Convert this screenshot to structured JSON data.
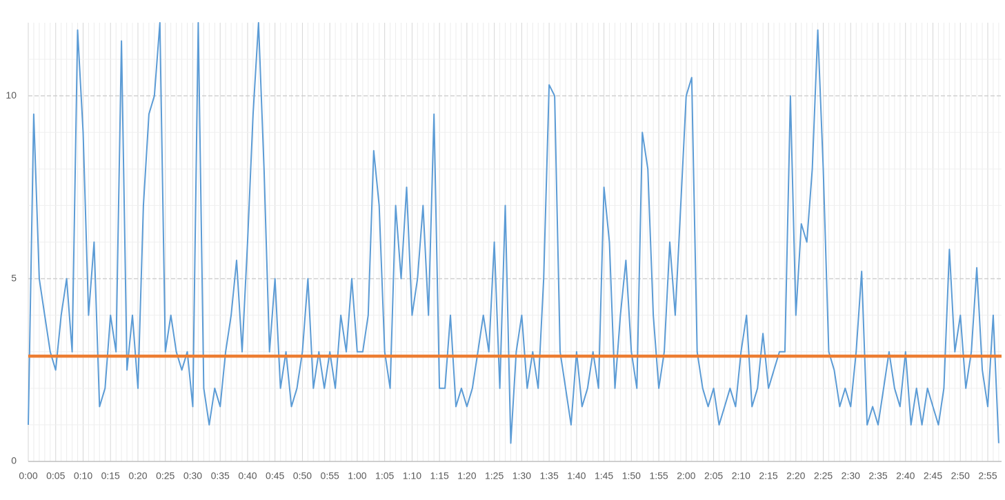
{
  "chart_data": {
    "type": "line",
    "categories": [
      "0:00",
      null,
      null,
      null,
      null,
      "0:05",
      null,
      null,
      null,
      null,
      "0:10",
      null,
      null,
      null,
      null,
      "0:15",
      null,
      null,
      null,
      null,
      "0:20",
      null,
      null,
      null,
      null,
      "0:25",
      null,
      null,
      null,
      null,
      "0:30",
      null,
      null,
      null,
      null,
      "0:35",
      null,
      null,
      null,
      null,
      "0:40",
      null,
      null,
      null,
      null,
      "0:45",
      null,
      null,
      null,
      null,
      "0:50",
      null,
      null,
      null,
      null,
      "0:55",
      null,
      null,
      null,
      null,
      "1:00",
      null,
      null,
      null,
      null,
      "1:05",
      null,
      null,
      null,
      null,
      "1:10",
      null,
      null,
      null,
      null,
      "1:15",
      null,
      null,
      null,
      null,
      "1:20",
      null,
      null,
      null,
      null,
      "1:25",
      null,
      null,
      null,
      null,
      "1:30",
      null,
      null,
      null,
      null,
      "1:35",
      null,
      null,
      null,
      null,
      "1:40",
      null,
      null,
      null,
      null,
      "1:45",
      null,
      null,
      null,
      null,
      "1:50",
      null,
      null,
      null,
      null,
      "1:55",
      null,
      null,
      null,
      null,
      "2:00",
      null,
      null,
      null,
      null,
      "2:05",
      null,
      null,
      null,
      null,
      "2:10",
      null,
      null,
      null,
      null,
      "2:15",
      null,
      null,
      null,
      null,
      "2:20",
      null,
      null,
      null,
      null,
      "2:25",
      null,
      null,
      null,
      null,
      "2:30",
      null,
      null,
      null,
      null,
      "2:35",
      null,
      null,
      null,
      null,
      "2:40",
      null,
      null,
      null,
      null,
      "2:45",
      null,
      null,
      null,
      null,
      "2:50",
      null,
      null,
      null,
      null,
      "2:55",
      null,
      null
    ],
    "series": [
      {
        "color": "#5b9bd5",
        "values": [
          1,
          9.5,
          5,
          4,
          3,
          2.5,
          4,
          5,
          3,
          11.8,
          9,
          4,
          6,
          1.5,
          2,
          4,
          3,
          11.5,
          2.5,
          4,
          2,
          7,
          9.5,
          10,
          12,
          3,
          4,
          3,
          2.5,
          3,
          1.5,
          12,
          2,
          1,
          2,
          1.5,
          3,
          4,
          5.5,
          3,
          6,
          9.5,
          12,
          8,
          3,
          5,
          2,
          3,
          1.5,
          2,
          3,
          5,
          2,
          3,
          2,
          3,
          2,
          4,
          3,
          5,
          3,
          3,
          4,
          8.5,
          7,
          3,
          2,
          7,
          5,
          7.5,
          4,
          5,
          7,
          4,
          9.5,
          2,
          2,
          4,
          1.5,
          2,
          1.5,
          2,
          3,
          4,
          3,
          6,
          2,
          7,
          0.5,
          3,
          4,
          2,
          3,
          2,
          5,
          10.3,
          10,
          3,
          2,
          1,
          3,
          1.5,
          2,
          3,
          2,
          7.5,
          6,
          2,
          4,
          5.5,
          3,
          2,
          9,
          8,
          4,
          2,
          3,
          6,
          4,
          7,
          10,
          10.5,
          3,
          2,
          1.5,
          2,
          1,
          1.5,
          2,
          1.5,
          3,
          4,
          1.5,
          2,
          3.5,
          2,
          2.5,
          3,
          3,
          10,
          4,
          6.5,
          6,
          8,
          11.8,
          8,
          3,
          2.5,
          1.5,
          2,
          1.5,
          3,
          5.2,
          1,
          1.5,
          1,
          2,
          3,
          2,
          1.5,
          3,
          1,
          2,
          1,
          2,
          1.5,
          1,
          2,
          5.8,
          3,
          4,
          2,
          3,
          5.3,
          2.5,
          1.5,
          4,
          0.5
        ]
      }
    ],
    "reference_line": {
      "value": 2.88,
      "color": "#ed7d31"
    },
    "ylim": [
      0,
      12
    ],
    "yticks": [
      0,
      5,
      10
    ],
    "minor_yticks": [
      1,
      2,
      3,
      4,
      6,
      7,
      8,
      9,
      11
    ],
    "grid": true
  }
}
